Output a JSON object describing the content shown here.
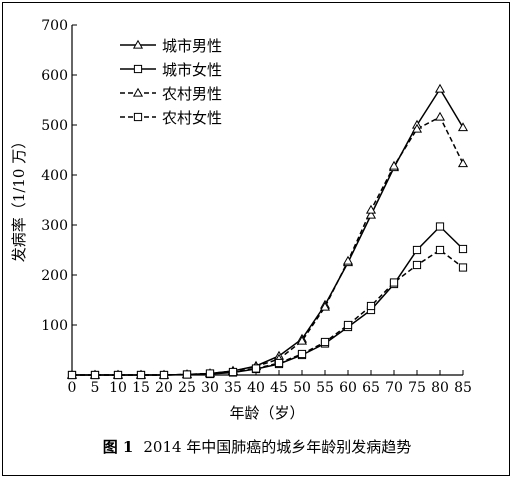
{
  "chart_data": {
    "type": "line",
    "ylabel": "发病率（1/10 万）",
    "xlabel": "年龄（岁）",
    "ylim": [
      0,
      700
    ],
    "xlim": [
      0,
      85
    ],
    "yticks": [
      0,
      100,
      200,
      300,
      400,
      500,
      600,
      700
    ],
    "xticks": [
      0,
      5,
      10,
      15,
      20,
      25,
      30,
      35,
      40,
      45,
      50,
      55,
      60,
      65,
      70,
      75,
      80,
      85
    ],
    "x": [
      0,
      5,
      10,
      15,
      20,
      25,
      30,
      35,
      40,
      45,
      50,
      55,
      60,
      65,
      70,
      75,
      80,
      85
    ],
    "legend_position": "top-left",
    "series": [
      {
        "name": "城市男性",
        "line": "solid",
        "marker": "triangle",
        "values": [
          0,
          0,
          0,
          0,
          0,
          1,
          3,
          8,
          18,
          38,
          72,
          140,
          225,
          320,
          415,
          500,
          572,
          495
        ]
      },
      {
        "name": "城市女性",
        "line": "solid",
        "marker": "square",
        "values": [
          0,
          0,
          0,
          0,
          0,
          1,
          2,
          5,
          12,
          22,
          40,
          63,
          96,
          130,
          182,
          250,
          297,
          252
        ]
      },
      {
        "name": "农村男性",
        "line": "dashed",
        "marker": "triangle",
        "values": [
          0,
          0,
          0,
          0,
          0,
          1,
          3,
          8,
          17,
          32,
          68,
          136,
          228,
          330,
          418,
          492,
          516,
          423
        ]
      },
      {
        "name": "农村女性",
        "line": "dashed",
        "marker": "square",
        "values": [
          0,
          0,
          0,
          0,
          0,
          1,
          3,
          6,
          13,
          24,
          42,
          66,
          100,
          138,
          185,
          220,
          250,
          215
        ]
      }
    ]
  },
  "caption": {
    "label": "图 1",
    "text": "2014 年中国肺癌的城乡年龄别发病趋势"
  }
}
